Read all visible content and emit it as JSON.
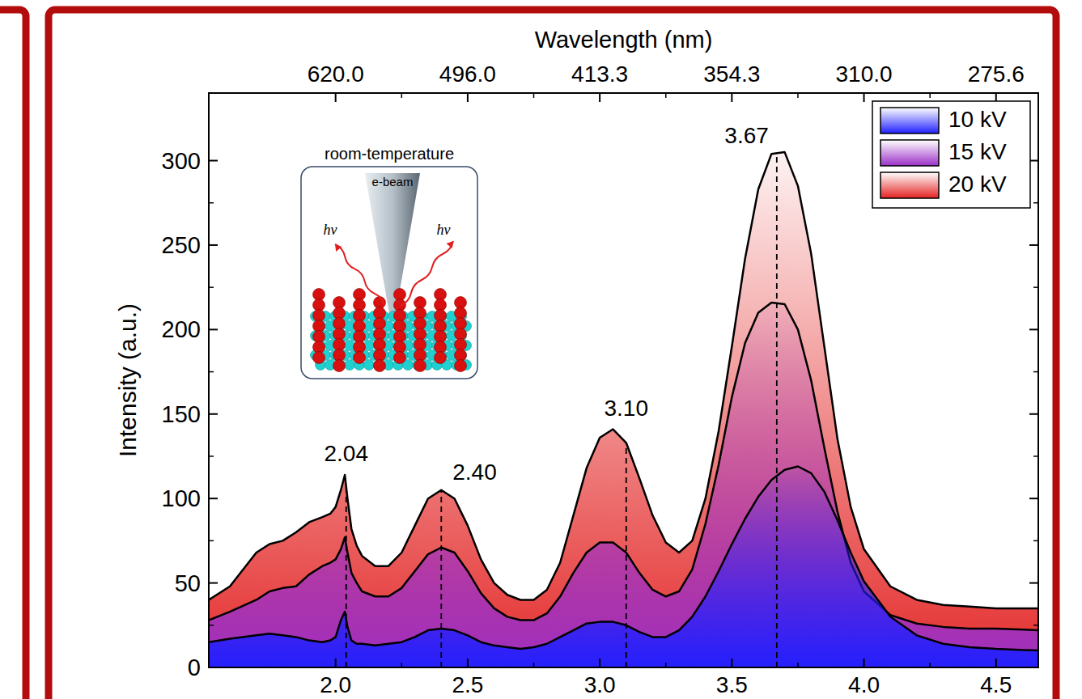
{
  "chart_data": {
    "type": "area",
    "y_label": "Intensity (a.u.)",
    "x2_label": "Wavelength (nm)",
    "x": [
      1.52,
      1.6,
      1.7,
      1.75,
      1.8,
      1.85,
      1.9,
      1.95,
      1.98,
      2.0,
      2.02,
      2.035,
      2.045,
      2.06,
      2.08,
      2.1,
      2.15,
      2.2,
      2.25,
      2.3,
      2.35,
      2.4,
      2.45,
      2.5,
      2.55,
      2.6,
      2.65,
      2.7,
      2.75,
      2.8,
      2.85,
      2.9,
      2.95,
      3.0,
      3.05,
      3.1,
      3.15,
      3.2,
      3.25,
      3.3,
      3.35,
      3.4,
      3.45,
      3.5,
      3.55,
      3.6,
      3.65,
      3.7,
      3.75,
      3.8,
      3.85,
      3.9,
      3.95,
      4.0,
      4.1,
      4.2,
      4.3,
      4.4,
      4.5,
      4.66
    ],
    "series": [
      {
        "name": "10 kV",
        "color": "#1f1fff",
        "values": [
          15,
          17,
          19,
          20,
          19,
          18,
          16,
          15,
          16,
          18,
          28,
          33,
          24,
          16,
          14,
          14,
          13,
          14,
          15,
          18,
          22,
          23,
          22,
          19,
          15,
          13,
          12,
          11,
          12,
          14,
          18,
          22,
          26,
          27,
          27,
          25,
          21,
          18,
          18,
          22,
          30,
          42,
          57,
          73,
          88,
          101,
          111,
          117,
          119,
          115,
          104,
          87,
          68,
          51,
          30,
          19,
          14,
          12,
          11,
          10
        ]
      },
      {
        "name": "15 kV",
        "color": "#9b30c8",
        "values": [
          28,
          33,
          40,
          45,
          47,
          48,
          55,
          60,
          62,
          64,
          70,
          77,
          68,
          56,
          50,
          45,
          42,
          42,
          47,
          57,
          67,
          71,
          68,
          57,
          44,
          35,
          30,
          28,
          28,
          32,
          42,
          56,
          68,
          74,
          74,
          68,
          56,
          46,
          42,
          45,
          58,
          85,
          120,
          160,
          192,
          210,
          216,
          215,
          200,
          170,
          130,
          92,
          62,
          45,
          31,
          26,
          24,
          23,
          23,
          22
        ]
      },
      {
        "name": "20 kV",
        "color": "#e32222",
        "values": [
          40,
          48,
          68,
          73,
          75,
          80,
          86,
          89,
          91,
          95,
          105,
          114,
          100,
          82,
          72,
          66,
          60,
          60,
          68,
          84,
          100,
          105,
          100,
          84,
          64,
          50,
          43,
          40,
          40,
          46,
          62,
          90,
          118,
          136,
          141,
          133,
          112,
          90,
          74,
          68,
          75,
          100,
          140,
          190,
          242,
          283,
          304,
          305,
          285,
          245,
          190,
          135,
          95,
          70,
          48,
          40,
          37,
          36,
          35,
          35
        ]
      }
    ],
    "xlim": [
      1.52,
      4.66
    ],
    "ylim": [
      0,
      340
    ],
    "xticks": [
      {
        "value": 2.0,
        "label": "2.0"
      },
      {
        "value": 2.5,
        "label": "2.5"
      },
      {
        "value": 3.0,
        "label": "3.0"
      },
      {
        "value": 3.5,
        "label": "3.5"
      },
      {
        "value": 4.0,
        "label": "4.0"
      },
      {
        "value": 4.5,
        "label": "4.5"
      }
    ],
    "yticks": [
      0,
      50,
      100,
      150,
      200,
      250,
      300
    ],
    "x2ticks": [
      {
        "value": 2.0,
        "label": "620.0"
      },
      {
        "value": 2.5,
        "label": "496.0"
      },
      {
        "value": 3.0,
        "label": "413.3"
      },
      {
        "value": 3.5,
        "label": "354.3"
      },
      {
        "value": 4.0,
        "label": "310.0"
      },
      {
        "value": 4.5,
        "label": "275.6"
      }
    ],
    "legend": "upper right",
    "annotations": [
      {
        "x": 2.04,
        "text": "2.04"
      },
      {
        "x": 2.4,
        "text": "2.40"
      },
      {
        "x": 3.1,
        "text": "3.10"
      },
      {
        "x": 3.67,
        "text": "3.67"
      }
    ],
    "inset": {
      "title": "room-temperature",
      "beam_label": "e-beam",
      "photon_label": "hv"
    }
  }
}
